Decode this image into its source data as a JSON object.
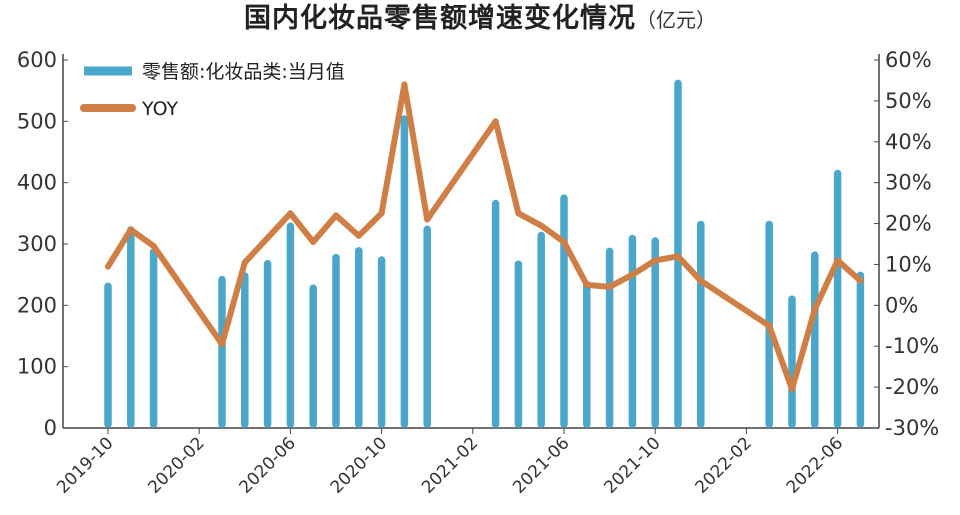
{
  "title": {
    "main": "国内化妆品零售额增速变化情况",
    "unit": "（亿元）"
  },
  "colors": {
    "bar": "#4aa7c9",
    "line": "#cf7f46",
    "axis": "#444444"
  },
  "chart_data": {
    "type": "bar+line",
    "title": "国内化妆品零售额增速变化情况（亿元）",
    "ylim_left": [
      0,
      600
    ],
    "ylim_right": [
      -30,
      60
    ],
    "yticks_left": [
      "0",
      "100",
      "200",
      "300",
      "400",
      "500",
      "600"
    ],
    "yticks_right": [
      "-30%",
      "-20%",
      "-10%",
      "0%",
      "10%",
      "20%",
      "30%",
      "40%",
      "50%",
      "60%"
    ],
    "xtick_labels": [
      "2019-10",
      "2020-02",
      "2020-06",
      "2020-10",
      "2021-02",
      "2021-06",
      "2021-10",
      "2022-02",
      "2022-06"
    ],
    "grid": false,
    "legend_position": "top-left",
    "series": [
      {
        "name": "零售额:化妆品类:当月值",
        "kind": "bar",
        "axis": "left",
        "points": [
          {
            "x": "2019-10",
            "y": 237
          },
          {
            "x": "2019-11",
            "y": 329
          },
          {
            "x": "2019-12",
            "y": 293
          },
          {
            "x": "2020-03",
            "y": 248
          },
          {
            "x": "2020-04",
            "y": 254
          },
          {
            "x": "2020-05",
            "y": 274
          },
          {
            "x": "2020-06",
            "y": 335
          },
          {
            "x": "2020-07",
            "y": 234
          },
          {
            "x": "2020-08",
            "y": 284
          },
          {
            "x": "2020-09",
            "y": 295
          },
          {
            "x": "2020-10",
            "y": 280
          },
          {
            "x": "2020-11",
            "y": 510
          },
          {
            "x": "2020-12",
            "y": 330
          },
          {
            "x": "2021-03",
            "y": 372
          },
          {
            "x": "2021-04",
            "y": 273
          },
          {
            "x": "2021-05",
            "y": 320
          },
          {
            "x": "2021-06",
            "y": 381
          },
          {
            "x": "2021-07",
            "y": 240
          },
          {
            "x": "2021-08",
            "y": 294
          },
          {
            "x": "2021-09",
            "y": 315
          },
          {
            "x": "2021-10",
            "y": 311
          },
          {
            "x": "2021-11",
            "y": 568
          },
          {
            "x": "2021-12",
            "y": 338
          },
          {
            "x": "2022-03",
            "y": 338
          },
          {
            "x": "2022-04",
            "y": 216
          },
          {
            "x": "2022-05",
            "y": 288
          },
          {
            "x": "2022-06",
            "y": 421
          },
          {
            "x": "2022-07",
            "y": 255
          }
        ]
      },
      {
        "name": "YOY",
        "kind": "line",
        "axis": "right",
        "points": [
          {
            "x": "2019-10",
            "y": 9.5
          },
          {
            "x": "2019-11",
            "y": 18.5
          },
          {
            "x": "2019-12",
            "y": 14.5
          },
          {
            "x": "2020-03",
            "y": -9.5
          },
          {
            "x": "2020-04",
            "y": 10.5
          },
          {
            "x": "2020-05",
            "y": 16.5
          },
          {
            "x": "2020-06",
            "y": 22.5
          },
          {
            "x": "2020-07",
            "y": 15.5
          },
          {
            "x": "2020-08",
            "y": 22
          },
          {
            "x": "2020-09",
            "y": 17
          },
          {
            "x": "2020-10",
            "y": 22.5
          },
          {
            "x": "2020-11",
            "y": 54
          },
          {
            "x": "2020-12",
            "y": 21
          },
          {
            "x": "2021-03",
            "y": 45
          },
          {
            "x": "2021-04",
            "y": 22.5
          },
          {
            "x": "2021-05",
            "y": 19.5
          },
          {
            "x": "2021-06",
            "y": 15.5
          },
          {
            "x": "2021-07",
            "y": 5
          },
          {
            "x": "2021-08",
            "y": 4.5
          },
          {
            "x": "2021-09",
            "y": 7.5
          },
          {
            "x": "2021-10",
            "y": 11
          },
          {
            "x": "2021-11",
            "y": 12
          },
          {
            "x": "2021-12",
            "y": 6
          },
          {
            "x": "2022-03",
            "y": -5
          },
          {
            "x": "2022-04",
            "y": -20.5
          },
          {
            "x": "2022-05",
            "y": -1
          },
          {
            "x": "2022-06",
            "y": 11
          },
          {
            "x": "2022-07",
            "y": 6
          }
        ]
      }
    ]
  }
}
